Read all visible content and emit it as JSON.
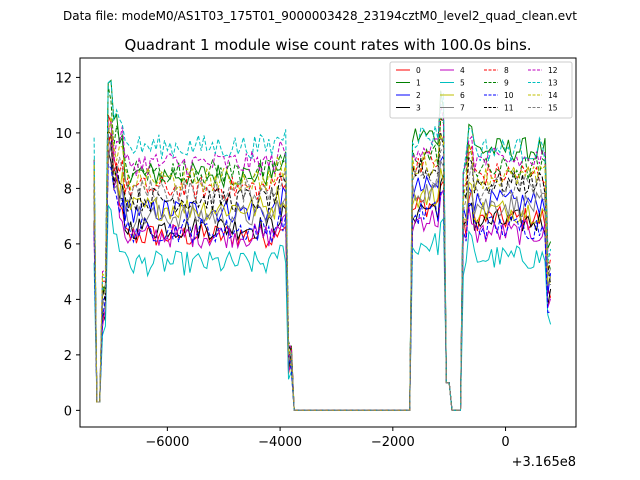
{
  "suptitle": "Data file: modeM0/AS1T03_175T01_9000003428_23194cztM0_level2_quad_clean.evt",
  "chart_data": {
    "type": "line",
    "title": "Quadrant 1 module wise count rates with 100.0s bins.",
    "xlabel": "",
    "ylabel": "",
    "x_offset_label": "+3.165e8",
    "x_offset": 316500000,
    "xlim": [
      -7550,
      1250
    ],
    "ylim": [
      -0.6,
      12.7
    ],
    "x_ticks": [
      -6000,
      -4000,
      -2000,
      0
    ],
    "x_tick_labels": [
      "−6000",
      "−4000",
      "−2000",
      "0"
    ],
    "y_ticks": [
      0,
      2,
      4,
      6,
      8,
      10,
      12
    ],
    "y_tick_labels": [
      "0",
      "2",
      "4",
      "6",
      "8",
      "10",
      "12"
    ],
    "grid": false,
    "legend_position": "top-right",
    "legend_columns": 4,
    "segments": [
      {
        "start": -7300,
        "end": 800,
        "bin": 100
      }
    ],
    "series": [
      {
        "name": "0",
        "color": "#ff0000",
        "style": "solid",
        "level_a": 6.3,
        "level_b": 6.9,
        "peak": 10.2
      },
      {
        "name": "1",
        "color": "#008000",
        "style": "solid",
        "level_a": 8.5,
        "level_b": 9.4,
        "peak": 11.6
      },
      {
        "name": "2",
        "color": "#0000ff",
        "style": "solid",
        "level_a": 7.2,
        "level_b": 7.5,
        "peak": 9.6
      },
      {
        "name": "3",
        "color": "#000000",
        "style": "solid",
        "level_a": 6.6,
        "level_b": 6.8,
        "peak": 9.0
      },
      {
        "name": "4",
        "color": "#bf00bf",
        "style": "solid",
        "level_a": 6.3,
        "level_b": 6.4,
        "peak": 9.3
      },
      {
        "name": "5",
        "color": "#00bfbf",
        "style": "solid",
        "level_a": 5.3,
        "level_b": 5.5,
        "peak": 7.3
      },
      {
        "name": "6",
        "color": "#bfbf00",
        "style": "solid",
        "level_a": 7.3,
        "level_b": 7.2,
        "peak": 9.8
      },
      {
        "name": "7",
        "color": "#808080",
        "style": "solid",
        "level_a": 7.0,
        "level_b": 7.4,
        "peak": 9.4
      },
      {
        "name": "8",
        "color": "#ff0000",
        "style": "dashed",
        "level_a": 8.0,
        "level_b": 8.5,
        "peak": 10.0
      },
      {
        "name": "9",
        "color": "#008000",
        "style": "dashed",
        "level_a": 8.6,
        "level_b": 8.7,
        "peak": 11.3
      },
      {
        "name": "10",
        "color": "#0000ff",
        "style": "dashed",
        "level_a": 6.5,
        "level_b": 6.6,
        "peak": 9.1
      },
      {
        "name": "11",
        "color": "#000000",
        "style": "dashed",
        "level_a": 7.6,
        "level_b": 8.2,
        "peak": 9.7
      },
      {
        "name": "12",
        "color": "#bf00bf",
        "style": "dashed",
        "level_a": 8.9,
        "level_b": 9.0,
        "peak": 10.5
      },
      {
        "name": "13",
        "color": "#00bfbf",
        "style": "dashed",
        "level_a": 9.5,
        "level_b": 9.4,
        "peak": 12.1
      },
      {
        "name": "14",
        "color": "#bfbf00",
        "style": "dashed",
        "level_a": 8.3,
        "level_b": 8.4,
        "peak": 10.3
      },
      {
        "name": "15",
        "color": "#808080",
        "style": "dashed",
        "level_a": 7.9,
        "level_b": 8.0,
        "peak": 10.1
      }
    ]
  }
}
